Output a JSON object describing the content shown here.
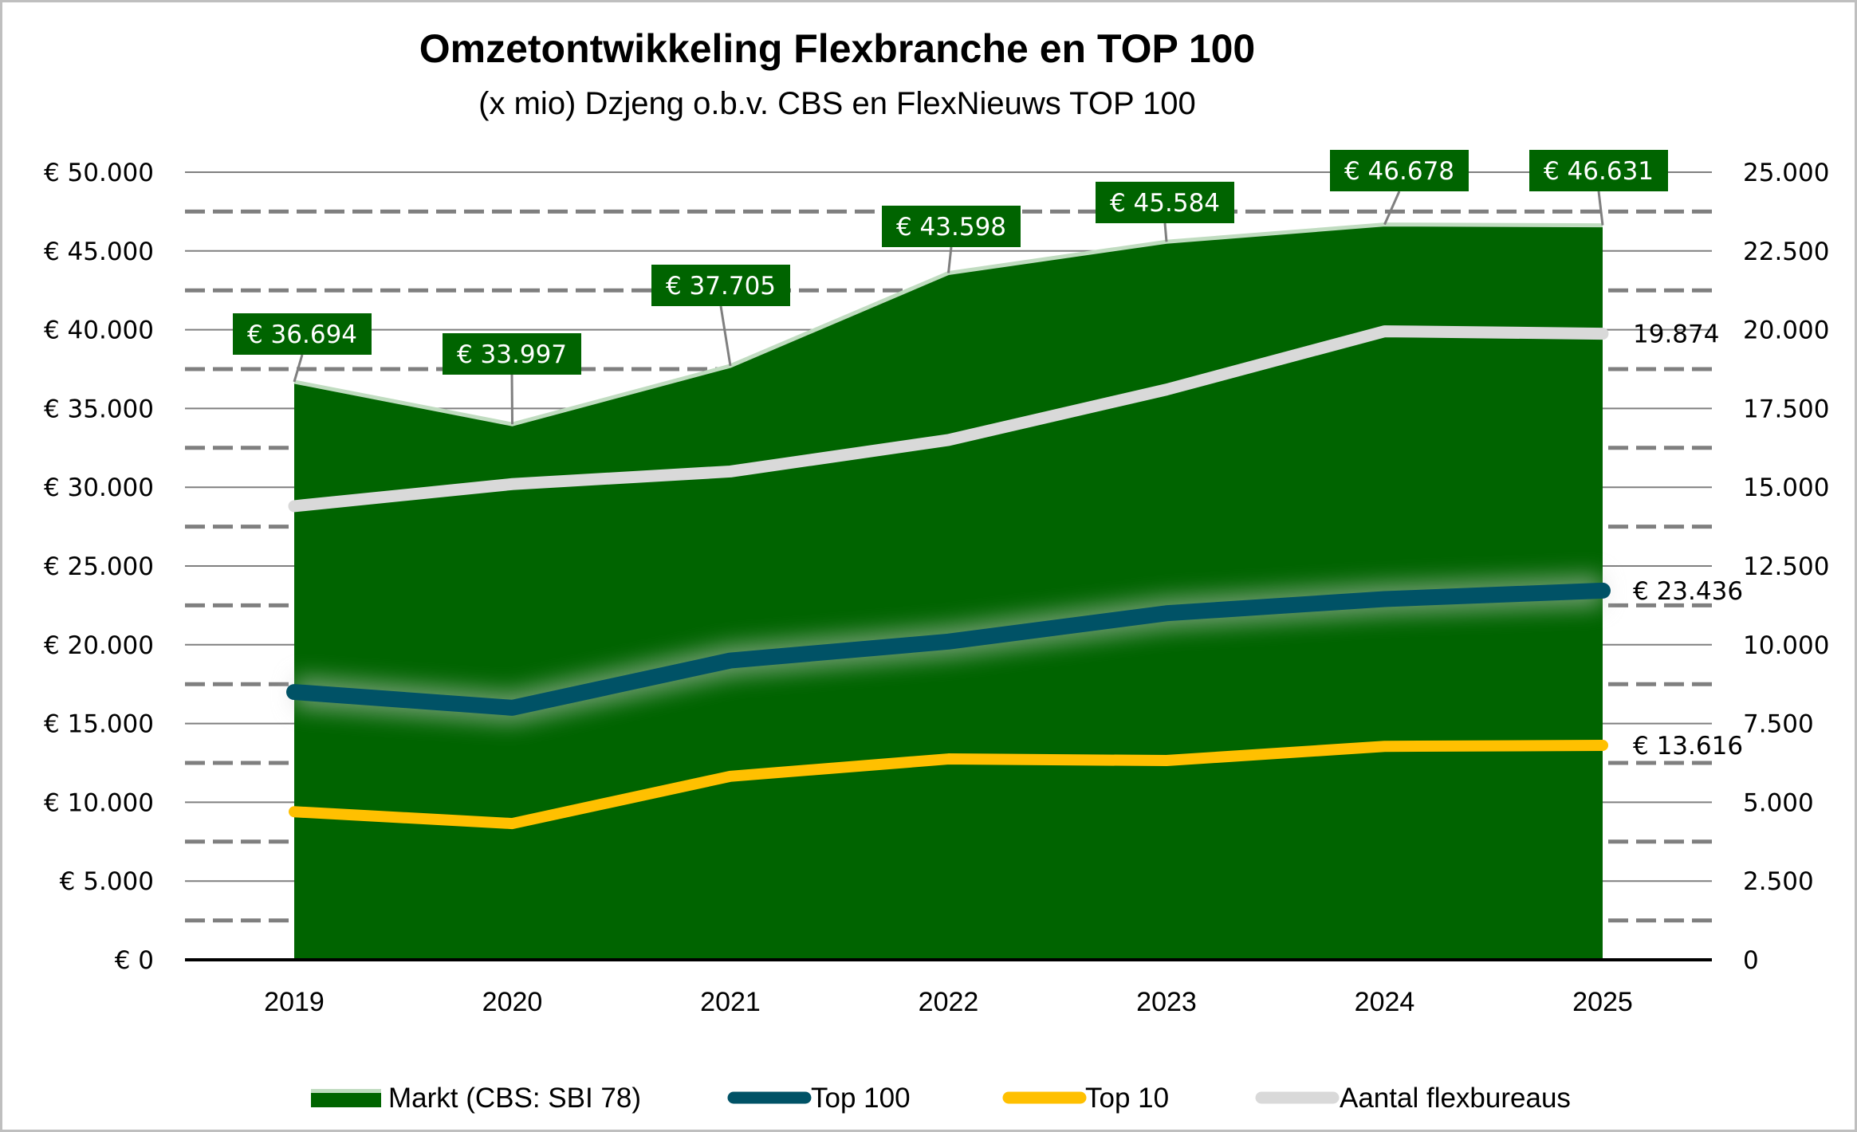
{
  "chart_data": {
    "type": "area",
    "title": "Omzetontwikkeling Flexbranche en TOP 100",
    "subtitle": "(x mio) Dzjeng o.b.v. CBS en FlexNieuws TOP 100",
    "categories": [
      "2019",
      "2020",
      "2021",
      "2022",
      "2023",
      "2024",
      "2025"
    ],
    "primary_axis": {
      "ylim": [
        0,
        50000
      ],
      "tick_labels": [
        "€ 0",
        "€ 5.000",
        "€ 10.000",
        "€ 15.000",
        "€ 20.000",
        "€ 25.000",
        "€ 30.000",
        "€ 35.000",
        "€ 40.000",
        "€ 45.000",
        "€ 50.000"
      ],
      "gridlines": "solid"
    },
    "secondary_axis": {
      "ylim": [
        0,
        25000
      ],
      "tick_labels": [
        "0",
        "2.500",
        "5.000",
        "7.500",
        "10.000",
        "12.500",
        "15.000",
        "17.500",
        "20.000",
        "22.500",
        "25.000"
      ],
      "gridlines": "dashed"
    },
    "series": [
      {
        "name": "Markt (CBS: SBI 78)",
        "type": "area",
        "axis": "primary",
        "color": "#006400",
        "edge_color": "#c0dcc0",
        "values": [
          36694,
          33997,
          37705,
          43598,
          45584,
          46678,
          46631
        ],
        "data_labels": [
          "€ 36.694",
          "€ 33.997",
          "€ 37.705",
          "€ 43.598",
          "€ 45.584",
          "€ 46.678",
          "€ 46.631"
        ]
      },
      {
        "name": "Top 100",
        "type": "line",
        "axis": "primary",
        "color": "#005266",
        "values": [
          17000,
          16000,
          19000,
          20200,
          22000,
          22900,
          23436
        ],
        "end_label": "€ 23.436"
      },
      {
        "name": "Top 10",
        "type": "line",
        "axis": "primary",
        "color": "#ffc000",
        "values": [
          9400,
          8650,
          11650,
          12750,
          12650,
          13550,
          13616
        ],
        "end_label": "€ 13.616"
      },
      {
        "name": "Aantal flexbureaus",
        "type": "line",
        "axis": "secondary",
        "color": "#d9d9d9",
        "values": [
          14400,
          15100,
          15500,
          16500,
          18100,
          19950,
          19874
        ],
        "end_label": "19.874"
      }
    ],
    "legend": {
      "position": "bottom",
      "entries": [
        "Markt (CBS: SBI 78)",
        "Top 100",
        "Top 10",
        "Aantal flexbureaus"
      ]
    }
  }
}
